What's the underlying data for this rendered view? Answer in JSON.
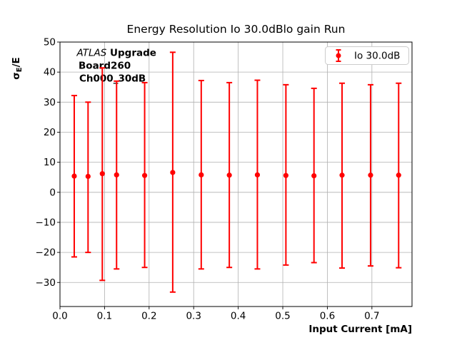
{
  "figure": {
    "annotation": {
      "experiment_italic": "ATLAS",
      "experiment_bold": " Upgrade",
      "board": "Board260",
      "channel": "Ch000_30dB"
    }
  },
  "chart_data": {
    "type": "scatter",
    "subtype": "errorbar",
    "title": "Energy Resolution Io 30.0dBlo gain Run",
    "xlabel": "Input Current [mA]",
    "ylabel": "σE/E",
    "ylabel_display": {
      "sigma": "σ",
      "sub": "E",
      "rest": "/E"
    },
    "xlim": [
      0,
      0.79
    ],
    "ylim": [
      -38,
      50
    ],
    "xticks": [
      0.0,
      0.1,
      0.2,
      0.3,
      0.4,
      0.5,
      0.6,
      0.7
    ],
    "yticks": [
      -30,
      -20,
      -10,
      0,
      10,
      20,
      30,
      40,
      50
    ],
    "grid": true,
    "legend_position": "upper right",
    "series": [
      {
        "name": "Io 30.0dB",
        "color": "#ff0000",
        "marker": "circle",
        "x": [
          0.032,
          0.063,
          0.095,
          0.127,
          0.19,
          0.253,
          0.317,
          0.38,
          0.443,
          0.507,
          0.57,
          0.633,
          0.697,
          0.76
        ],
        "y": [
          5.4,
          5.3,
          6.2,
          5.8,
          5.6,
          6.6,
          5.8,
          5.7,
          5.8,
          5.6,
          5.5,
          5.7,
          5.7,
          5.7
        ],
        "y_low": [
          -21.5,
          -20.0,
          -29.3,
          -25.5,
          -25.0,
          -33.2,
          -25.5,
          -25.0,
          -25.5,
          -24.2,
          -23.4,
          -25.2,
          -24.5,
          -25.1
        ],
        "y_high": [
          32.2,
          30.0,
          41.4,
          37.0,
          36.5,
          46.6,
          37.2,
          36.5,
          37.3,
          35.8,
          34.6,
          36.3,
          35.8,
          36.3
        ]
      }
    ]
  },
  "colors": {
    "accent": "#ff0000",
    "grid": "#b0b0b0",
    "frame": "#000000",
    "legend_border": "#cccccc",
    "background": "#ffffff"
  }
}
